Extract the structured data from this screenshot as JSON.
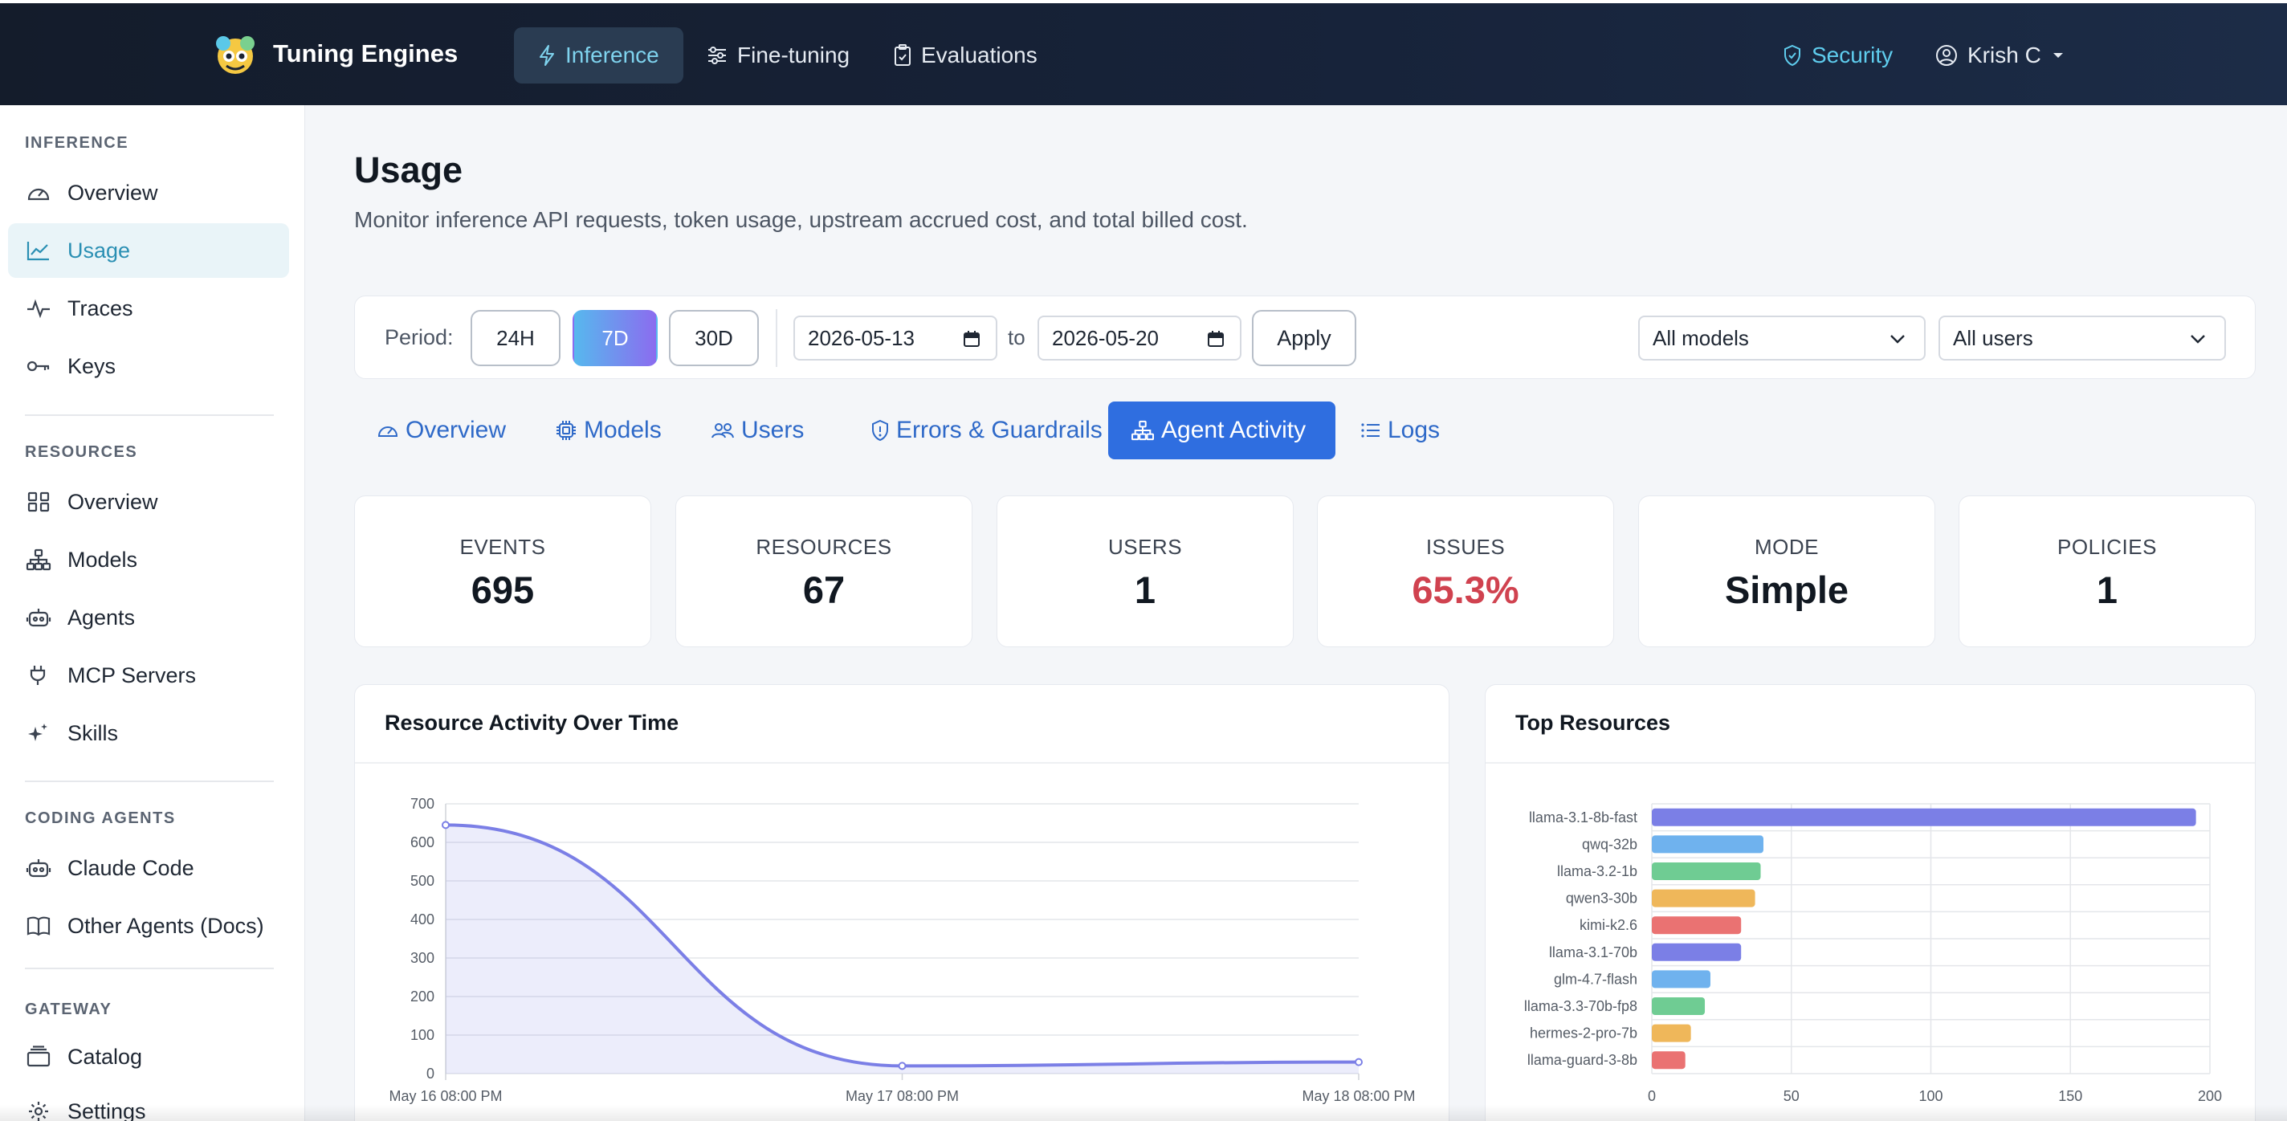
{
  "brand": {
    "name": "Tuning Engines"
  },
  "topnav": {
    "items": [
      {
        "label": "Inference",
        "icon": "bolt-icon"
      },
      {
        "label": "Fine-tuning",
        "icon": "sliders-icon"
      },
      {
        "label": "Evaluations",
        "icon": "clipboard-icon"
      }
    ],
    "security": {
      "label": "Security",
      "icon": "shield-icon"
    },
    "user": {
      "label": "Krish C",
      "icon": "user-circle-icon"
    }
  },
  "sidebar": {
    "sections": [
      {
        "heading": "INFERENCE",
        "items": [
          {
            "label": "Overview",
            "icon": "gauge-icon"
          },
          {
            "label": "Usage",
            "icon": "line-chart-icon",
            "active": true
          },
          {
            "label": "Traces",
            "icon": "pulse-icon"
          },
          {
            "label": "Keys",
            "icon": "key-icon"
          }
        ]
      },
      {
        "heading": "RESOURCES",
        "items": [
          {
            "label": "Overview",
            "icon": "grid-icon"
          },
          {
            "label": "Models",
            "icon": "network-icon"
          },
          {
            "label": "Agents",
            "icon": "robot-icon"
          },
          {
            "label": "MCP Servers",
            "icon": "plug-icon"
          },
          {
            "label": "Skills",
            "icon": "sparkles-icon"
          }
        ]
      },
      {
        "heading": "CODING AGENTS",
        "items": [
          {
            "label": "Claude Code",
            "icon": "robot-icon"
          },
          {
            "label": "Other Agents (Docs)",
            "icon": "book-icon"
          }
        ]
      },
      {
        "heading": "GATEWAY",
        "items": [
          {
            "label": "Catalog",
            "icon": "stack-icon"
          },
          {
            "label": "Settings",
            "icon": "gear-icon"
          }
        ]
      }
    ]
  },
  "page": {
    "title": "Usage",
    "subtitle": "Monitor inference API requests, token usage, upstream accrued cost, and total billed cost."
  },
  "filters": {
    "period_label": "Period:",
    "periods": [
      "24H",
      "7D",
      "30D"
    ],
    "active_period": "7D",
    "date_from": "2026-05-13",
    "to_label": "to",
    "date_to": "2026-05-20",
    "apply_label": "Apply",
    "model_select": "All models",
    "user_select": "All users"
  },
  "tabs": [
    {
      "label": "Overview",
      "icon": "gauge-icon"
    },
    {
      "label": "Models",
      "icon": "chip-icon"
    },
    {
      "label": "Users",
      "icon": "users-icon"
    },
    {
      "label": "Errors & Guardrails",
      "icon": "shield-alert-icon"
    },
    {
      "label": "Agent Activity",
      "icon": "network-icon",
      "active": true
    },
    {
      "label": "Logs",
      "icon": "list-icon"
    }
  ],
  "stats": [
    {
      "label": "EVENTS",
      "value": "695"
    },
    {
      "label": "RESOURCES",
      "value": "67"
    },
    {
      "label": "USERS",
      "value": "1"
    },
    {
      "label": "ISSUES",
      "value": "65.3%",
      "status": "danger"
    },
    {
      "label": "MODE",
      "value": "Simple"
    },
    {
      "label": "POLICIES",
      "value": "1"
    }
  ],
  "colors": {
    "accent": "#2f6ee0",
    "active_sidebar": "#2a8fb3",
    "danger": "#d0424f",
    "line": "#7b7fe6"
  },
  "chart_data": [
    {
      "title": "Resource Activity Over Time",
      "type": "area",
      "x": [
        "May 16 08:00 PM",
        "May 17 08:00 PM",
        "May 18 08:00 PM"
      ],
      "series": [
        {
          "values": [
            645,
            20,
            30
          ]
        }
      ],
      "ylim": [
        0,
        700
      ],
      "yticks": [
        0,
        100,
        200,
        300,
        400,
        500,
        600,
        700
      ],
      "grid": true
    },
    {
      "title": "Top Resources",
      "type": "bar",
      "orientation": "horizontal",
      "categories": [
        "llama-3.1-8b-fast",
        "qwq-32b",
        "llama-3.2-1b",
        "qwen3-30b",
        "kimi-k2.6",
        "llama-3.1-70b",
        "glm-4.7-flash",
        "llama-3.3-70b-fp8",
        "hermes-2-pro-7b",
        "llama-guard-3-8b"
      ],
      "values": [
        195,
        40,
        39,
        37,
        32,
        32,
        21,
        19,
        14,
        12
      ],
      "xlim": [
        0,
        200
      ],
      "xticks": [
        0,
        50,
        100,
        150,
        200
      ],
      "bar_colors": [
        "#7b7fe6",
        "#6fb2ee",
        "#6fcc93",
        "#efb75a",
        "#ea7272",
        "#7b7fe6",
        "#6fb2ee",
        "#6fcc93",
        "#efb75a",
        "#ea7272"
      ],
      "grid": true
    }
  ]
}
